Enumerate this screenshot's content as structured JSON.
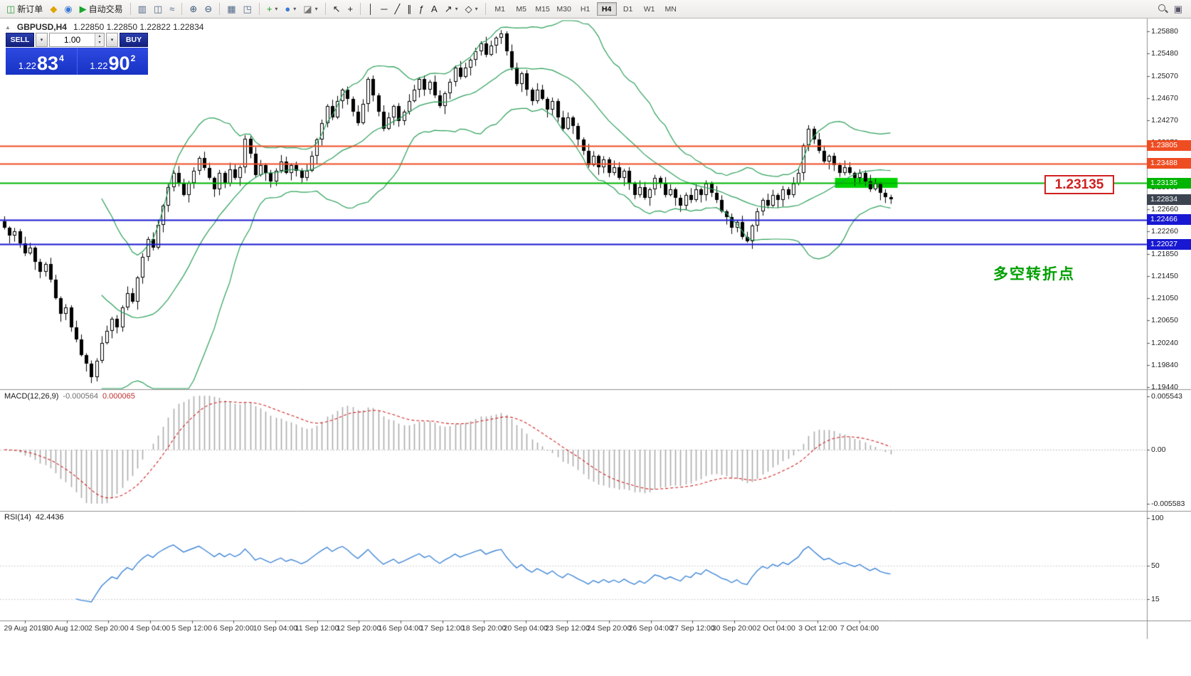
{
  "icons": {
    "dropdown_caret": "▾",
    "spin_up": "▴",
    "spin_down": "▾",
    "window_glyph": "▣",
    "header_arrow": "▲"
  },
  "toolbar": {
    "items": [
      {
        "name": "new-order-button",
        "glyph": "◫",
        "color": "#2e9e3e",
        "label": "新订单"
      },
      {
        "name": "alerts-button",
        "glyph": "◆",
        "color": "#e0a400"
      },
      {
        "name": "community-button",
        "glyph": "◉",
        "color": "#3b7bd4"
      },
      {
        "name": "autotrading-button",
        "glyph": "▶",
        "color": "#18a52c",
        "label": "自动交易"
      },
      {
        "kind": "sep"
      },
      {
        "name": "bar-chart-button",
        "glyph": "▥",
        "color": "#50688a"
      },
      {
        "name": "candle-chart-button",
        "glyph": "◫",
        "color": "#50688a"
      },
      {
        "name": "line-chart-button",
        "glyph": "≈",
        "color": "#50688a"
      },
      {
        "kind": "sep"
      },
      {
        "name": "zoom-in-button",
        "glyph": "⊕",
        "color": "#39567a"
      },
      {
        "name": "zoom-out-button",
        "glyph": "⊖",
        "color": "#39567a"
      },
      {
        "kind": "sep"
      },
      {
        "name": "tile-windows-button",
        "glyph": "▦",
        "color": "#50688a"
      },
      {
        "name": "auto-arrange-button",
        "glyph": "◳",
        "color": "#50688a"
      },
      {
        "kind": "sep"
      },
      {
        "name": "add-indicator-button",
        "glyph": "+",
        "color": "#18a020",
        "dropdown": true
      },
      {
        "name": "objects-button",
        "glyph": "●",
        "color": "#3b7bd4",
        "dropdown": true
      },
      {
        "name": "templates-button",
        "glyph": "◪",
        "color": "#777777",
        "dropdown": true
      },
      {
        "kind": "sep"
      },
      {
        "name": "cursor-button",
        "glyph": "↖",
        "color": "#222222"
      },
      {
        "name": "crosshair-button",
        "glyph": "+",
        "color": "#222222"
      },
      {
        "kind": "sep"
      },
      {
        "name": "vertical-line-button",
        "glyph": "│",
        "color": "#222222"
      },
      {
        "name": "horizontal-line-button",
        "glyph": "─",
        "color": "#222222"
      },
      {
        "name": "trendline-button",
        "glyph": "╱",
        "color": "#222222"
      },
      {
        "name": "equidistant-channel-button",
        "glyph": "∥",
        "color": "#222222"
      },
      {
        "name": "fibonacci-button",
        "glyph": "ƒ",
        "color": "#222222"
      },
      {
        "name": "text-button",
        "glyph": "A",
        "color": "#222222"
      },
      {
        "name": "arrows-button",
        "glyph": "↗",
        "color": "#222222",
        "dropdown": true
      },
      {
        "name": "shapes-button",
        "glyph": "◇",
        "color": "#222222",
        "dropdown": true
      },
      {
        "kind": "sep"
      }
    ],
    "timeframes": [
      "M1",
      "M5",
      "M15",
      "M30",
      "H1",
      "H4",
      "D1",
      "W1",
      "MN"
    ],
    "active_timeframe": "H4"
  },
  "header": {
    "symbol_period": "GBPUSD,H4",
    "ohlc": "1.22850 1.22850 1.22822 1.22834"
  },
  "trade": {
    "sell_label": "SELL",
    "buy_label": "BUY",
    "volume": "1.00",
    "sell_price": {
      "prefix": "1.22",
      "big": "83",
      "sup": "4"
    },
    "buy_price": {
      "prefix": "1.22",
      "big": "90",
      "sup": "2"
    }
  },
  "annotations": {
    "price_label": "1.23135",
    "turning_point": "多空转折点",
    "turning_point_color": "#00a000",
    "box_color": "#d02020"
  },
  "chart_data": {
    "type": "candlestick",
    "symbol": "GBPUSD",
    "timeframe": "H4",
    "first_open": 1.2244,
    "closes": [
      1.2232,
      1.2218,
      1.2226,
      1.2204,
      1.2186,
      1.2196,
      1.217,
      1.2152,
      1.2166,
      1.2138,
      1.2105,
      1.2076,
      1.2088,
      1.2052,
      1.203,
      1.2002,
      1.1986,
      1.1962,
      1.1992,
      1.2024,
      1.2046,
      1.2068,
      1.2052,
      1.2088,
      1.2114,
      1.2098,
      1.2142,
      1.218,
      1.2212,
      1.2196,
      1.2238,
      1.2272,
      1.2306,
      1.2332,
      1.2312,
      1.2292,
      1.2314,
      1.2336,
      1.2358,
      1.2341,
      1.2322,
      1.2302,
      1.2331,
      1.2312,
      1.2338,
      1.2322,
      1.2342,
      1.2394,
      1.2366,
      1.2328,
      1.2346,
      1.2331,
      1.2316,
      1.2336,
      1.2352,
      1.2332,
      1.2346,
      1.2336,
      1.2322,
      1.2336,
      1.2362,
      1.2392,
      1.2422,
      1.2452,
      1.2432,
      1.2462,
      1.2482,
      1.2466,
      1.2442,
      1.2422,
      1.2456,
      1.2502,
      1.2472,
      1.2442,
      1.2412,
      1.2432,
      1.2452,
      1.2426,
      1.2442,
      1.2462,
      1.2482,
      1.2502,
      1.2482,
      1.2496,
      1.2472,
      1.2452,
      1.2476,
      1.2496,
      1.2522,
      1.2506,
      1.2522,
      1.2536,
      1.2552,
      1.2566,
      1.2546,
      1.2562,
      1.2576,
      1.2584,
      1.2552,
      1.2522,
      1.2492,
      1.2512,
      1.2482,
      1.2462,
      1.2482,
      1.2466,
      1.2446,
      1.2462,
      1.2432,
      1.2412,
      1.2432,
      1.2416,
      1.2392,
      1.2372,
      1.2346,
      1.2362,
      1.2342,
      1.2356,
      1.2332,
      1.2342,
      1.2322,
      1.2336,
      1.2312,
      1.2292,
      1.2306,
      1.2286,
      1.2302,
      1.2322,
      1.2312,
      1.2292,
      1.2302,
      1.2286,
      1.2272,
      1.2292,
      1.2282,
      1.2302,
      1.2292,
      1.2312,
      1.2296,
      1.2282,
      1.2262,
      1.2252,
      1.2232,
      1.2242,
      1.2216,
      1.2208,
      1.2236,
      1.2262,
      1.2282,
      1.2272,
      1.2292,
      1.2282,
      1.2302,
      1.2292,
      1.2312,
      1.2332,
      1.2382,
      1.2412,
      1.2392,
      1.2372,
      1.2352,
      1.2362,
      1.2346,
      1.2332,
      1.2342,
      1.2331,
      1.2322,
      1.2332,
      1.2316,
      1.2302,
      1.2312,
      1.2296,
      1.2288,
      1.22834
    ],
    "price_axis": {
      "ticks": [
        1.2588,
        1.2548,
        1.2507,
        1.2467,
        1.2427,
        1.2387,
        1.2346,
        1.2306,
        1.2266,
        1.2226,
        1.2185,
        1.2145,
        1.2105,
        1.2065,
        1.2024,
        1.1984,
        1.1944
      ],
      "labels": [
        "1.25880",
        "1.25480",
        "1.25070",
        "1.24670",
        "1.24270",
        "1.23870",
        "1.23460",
        "1.23060",
        "1.22660",
        "1.22260",
        "1.21850",
        "1.21450",
        "1.21050",
        "1.20650",
        "1.20240",
        "1.19840",
        "1.19440"
      ]
    },
    "levels": [
      {
        "price": 1.23805,
        "label": "1.23805",
        "color": "#ee4d22",
        "line_width": 2
      },
      {
        "price": 1.23488,
        "label": "1.23488",
        "color": "#ee4d22",
        "line_width": 2
      },
      {
        "price": 1.23135,
        "label": "1.23135",
        "color": "#00b400",
        "line_width": 2
      },
      {
        "price": 1.22466,
        "label": "1.22466",
        "color": "#1818d2",
        "line_width": 2
      },
      {
        "price": 1.22027,
        "label": "1.22027",
        "color": "#1818d2",
        "line_width": 2
      }
    ],
    "current_price": {
      "value": 1.22834,
      "label": "1.22834",
      "badge_color": "#3c4450"
    },
    "highlight_zone": {
      "price": 1.23135,
      "color": "#00d400"
    },
    "bollinger": {
      "period": 20,
      "deviation": 2,
      "color": "#2ca05a"
    },
    "macd": {
      "label": "MACD(12,26,9)",
      "value_main": "-0.000564",
      "value_signal": "0.000065",
      "fast": 12,
      "slow": 26,
      "signal": 9,
      "axis_ticks": [
        0.005543,
        0,
        -0.005583
      ],
      "axis_labels": [
        "0.005543",
        "0.00",
        "-0.005583"
      ],
      "histogram_color": "#ababab",
      "signal_color": "#d02020"
    },
    "rsi": {
      "label": "RSI(14)",
      "value": "42.4436",
      "period": 14,
      "axis_ticks": [
        100,
        50,
        15
      ],
      "axis_labels": [
        "100",
        "50",
        "15"
      ],
      "line_color": "#3f86d8"
    },
    "time_axis": [
      "29 Aug 2019",
      "30 Aug 12:00",
      "2 Sep 20:00",
      "4 Sep 04:00",
      "5 Sep 12:00",
      "6 Sep 20:00",
      "10 Sep 04:00",
      "11 Sep 12:00",
      "12 Sep 20:00",
      "16 Sep 04:00",
      "17 Sep 12:00",
      "18 Sep 20:00",
      "20 Sep 04:00",
      "23 Sep 12:00",
      "24 Sep 20:00",
      "26 Sep 04:00",
      "27 Sep 12:00",
      "30 Sep 20:00",
      "2 Oct 04:00",
      "3 Oct 12:00",
      "7 Oct 04:00"
    ]
  }
}
